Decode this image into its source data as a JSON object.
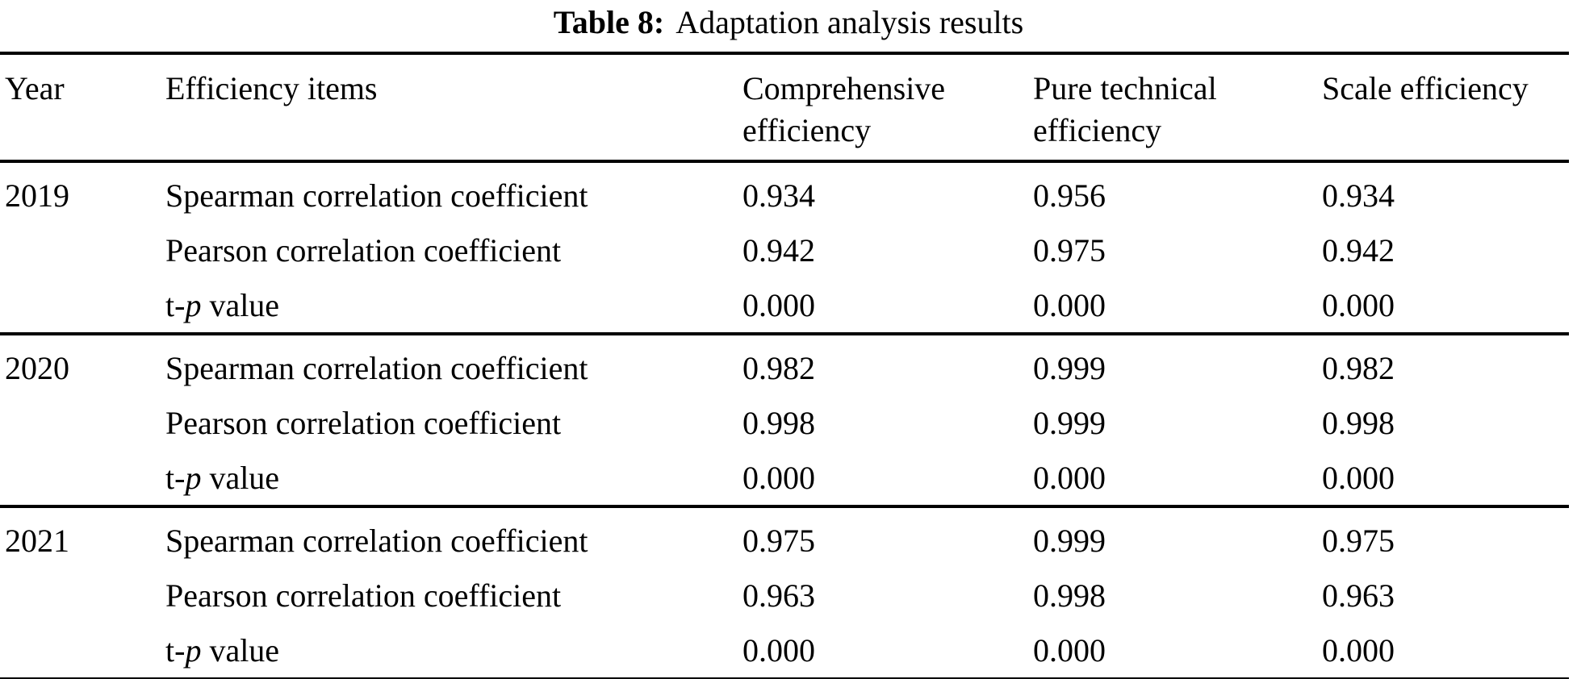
{
  "title": {
    "label": "Table 8:",
    "text": "Adaptation analysis results"
  },
  "table": {
    "headers": {
      "year": "Year",
      "items": "Efficiency items",
      "comprehensive": "Comprehensive efficiency",
      "pure_technical": "Pure technical efficiency",
      "scale": "Scale efficiency"
    },
    "metric_labels": {
      "spearman": "Spearman correlation coefficient",
      "pearson": "Pearson correlation coefficient",
      "tp_prefix": "t-",
      "tp_italic": "p",
      "tp_suffix": " value"
    },
    "groups": [
      {
        "year": "2019",
        "spearman": [
          "0.934",
          "0.956",
          "0.934"
        ],
        "pearson": [
          "0.942",
          "0.975",
          "0.942"
        ],
        "tp": [
          "0.000",
          "0.000",
          "0.000"
        ]
      },
      {
        "year": "2020",
        "spearman": [
          "0.982",
          "0.999",
          "0.982"
        ],
        "pearson": [
          "0.998",
          "0.999",
          "0.998"
        ],
        "tp": [
          "0.000",
          "0.000",
          "0.000"
        ]
      },
      {
        "year": "2021",
        "spearman": [
          "0.975",
          "0.999",
          "0.975"
        ],
        "pearson": [
          "0.963",
          "0.998",
          "0.963"
        ],
        "tp": [
          "0.000",
          "0.000",
          "0.000"
        ]
      }
    ]
  }
}
